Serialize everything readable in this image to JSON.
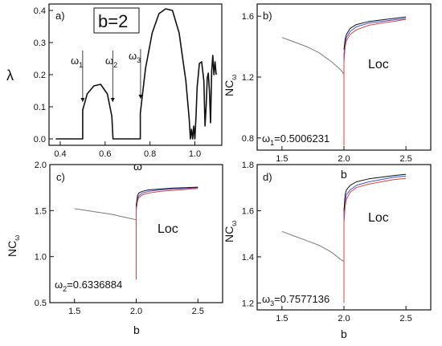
{
  "figure": {
    "panels": [
      {
        "label": "a)",
        "box_label": "b=2",
        "ylabel": "λ",
        "xlabel": "ω"
      },
      {
        "label": "b)",
        "ylabel": "NC",
        "ylabel_sub": "ω",
        "xlabel": "b",
        "region_label": "Loc",
        "omega_label": "ω",
        "omega_sub": "1",
        "omega_value": "=0.5006231"
      },
      {
        "label": "c)",
        "ylabel": "NC",
        "ylabel_sub": "ω",
        "xlabel": "b",
        "region_label": "Loc",
        "omega_label": "ω",
        "omega_sub": "2",
        "omega_value": "=0.6336884"
      },
      {
        "label": "d)",
        "ylabel": "NC",
        "ylabel_sub": "ω",
        "xlabel": "b",
        "region_label": "Loc",
        "omega_label": "ω",
        "omega_sub": "3",
        "omega_value": "=0.7577136"
      }
    ],
    "annotations_a": [
      {
        "sym": "ω",
        "sub": "1"
      },
      {
        "sym": "ω",
        "sub": "2"
      },
      {
        "sym": "ω",
        "sub": "3"
      }
    ],
    "colors": {
      "black": "#111111",
      "gray": "#7a7a7a",
      "blue": "#3355dd",
      "red": "#e04040",
      "magenta": "#cc55cc"
    }
  },
  "chart_data": [
    {
      "type": "line",
      "panel": "a",
      "xlim": [
        0.35,
        1.12
      ],
      "ylim": [
        -0.02,
        0.42
      ],
      "xticks": [
        0.4,
        0.6,
        0.8,
        1.0
      ],
      "xtick_labels": [
        "0.4",
        "0.6",
        "0.8",
        "1.0"
      ],
      "yticks": [
        0.0,
        0.1,
        0.2,
        0.3,
        0.4
      ],
      "ytick_labels": [
        "0.0",
        "0.1",
        "0.2",
        "0.3",
        "0.4"
      ],
      "series": [
        {
          "x": [
            0.38,
            0.5,
            0.5,
            0.52,
            0.55,
            0.58,
            0.61,
            0.63,
            0.635,
            0.64,
            0.65,
            0.68,
            0.72,
            0.75,
            0.757,
            0.757,
            0.78,
            0.81,
            0.84,
            0.87,
            0.9,
            0.93,
            0.96,
            0.975,
            0.98,
            0.985,
            0.99,
            0.995,
            1.0,
            1.005,
            1.01,
            1.02,
            1.03,
            1.04,
            1.045,
            1.05,
            1.055,
            1.06,
            1.065,
            1.07,
            1.075,
            1.08,
            1.085,
            1.09,
            1.095
          ],
          "y": [
            0.0,
            0.0,
            0.09,
            0.14,
            0.165,
            0.17,
            0.14,
            0.07,
            0.0,
            0.0,
            0.0,
            0.0,
            0.0,
            0.0,
            0.0,
            0.08,
            0.22,
            0.33,
            0.39,
            0.405,
            0.4,
            0.33,
            0.18,
            0.06,
            0.0,
            0.03,
            0.0,
            0.04,
            0.0,
            0.07,
            0.16,
            0.235,
            0.24,
            0.18,
            0.04,
            0.1,
            0.19,
            0.205,
            0.15,
            0.05,
            0.21,
            0.26,
            0.2,
            0.24,
            0.2
          ]
        }
      ],
      "annotations": [
        {
          "text": "ω1",
          "x": 0.5,
          "arrow_from_y": 0.275,
          "arrow_to_y": 0.02
        },
        {
          "text": "ω2",
          "x": 0.634,
          "arrow_from_y": 0.275,
          "arrow_to_y": 0.02
        },
        {
          "text": "ω3",
          "x": 0.758,
          "arrow_from_y": 0.28,
          "arrow_to_y": 0.03
        }
      ]
    },
    {
      "type": "line",
      "panel": "b",
      "xlim": [
        1.3,
        2.7
      ],
      "ylim": [
        0.72,
        1.68
      ],
      "xticks": [
        1.5,
        2.0,
        2.5
      ],
      "xtick_labels": [
        "1.5",
        "2.0",
        "2.5"
      ],
      "yticks": [
        0.8,
        1.2,
        1.6
      ],
      "ytick_labels": [
        "0.8",
        "1.2",
        "1.6"
      ],
      "series": [
        {
          "color": "gray",
          "x": [
            1.5,
            1.6,
            1.7,
            1.8,
            1.9,
            1.97,
            2.0
          ],
          "y": [
            1.46,
            1.43,
            1.4,
            1.36,
            1.3,
            1.25,
            1.22
          ]
        },
        {
          "color": "blue",
          "x": [
            2.0,
            2.0,
            2.01,
            2.02,
            2.05,
            2.1,
            2.2,
            2.3,
            2.4,
            2.5
          ],
          "y": [
            1.05,
            1.35,
            1.42,
            1.46,
            1.5,
            1.53,
            1.555,
            1.565,
            1.575,
            1.585
          ]
        },
        {
          "color": "red",
          "x": [
            2.0,
            2.0,
            2.01,
            2.02,
            2.05,
            2.1,
            2.2,
            2.3,
            2.4,
            2.5
          ],
          "y": [
            0.75,
            1.3,
            1.4,
            1.44,
            1.48,
            1.51,
            1.54,
            1.555,
            1.565,
            1.58
          ]
        },
        {
          "color": "black",
          "x": [
            2.0,
            2.01,
            2.02,
            2.05,
            2.1,
            2.2,
            2.3,
            2.4,
            2.5
          ],
          "y": [
            1.38,
            1.45,
            1.48,
            1.52,
            1.545,
            1.565,
            1.575,
            1.585,
            1.595
          ]
        }
      ]
    },
    {
      "type": "line",
      "panel": "c",
      "xlim": [
        1.3,
        2.7
      ],
      "ylim": [
        0.5,
        2.0
      ],
      "xticks": [
        1.5,
        2.0,
        2.5
      ],
      "xtick_labels": [
        "1.5",
        "2.0",
        "2.5"
      ],
      "yticks": [
        0.5,
        1.0,
        1.5,
        2.0
      ],
      "ytick_labels": [
        "0.5",
        "1.0",
        "1.5",
        "2.0"
      ],
      "series": [
        {
          "color": "gray",
          "x": [
            1.5,
            1.6,
            1.7,
            1.8,
            1.9,
            1.97,
            2.0
          ],
          "y": [
            1.52,
            1.5,
            1.48,
            1.46,
            1.43,
            1.41,
            1.4
          ]
        },
        {
          "color": "blue",
          "x": [
            2.0,
            2.0,
            2.01,
            2.02,
            2.05,
            2.1,
            2.2,
            2.3,
            2.4,
            2.5
          ],
          "y": [
            0.95,
            1.55,
            1.63,
            1.66,
            1.69,
            1.71,
            1.725,
            1.735,
            1.74,
            1.75
          ]
        },
        {
          "color": "red",
          "x": [
            2.0,
            2.0,
            2.01,
            2.02,
            2.05,
            2.1,
            2.2,
            2.3,
            2.4,
            2.5
          ],
          "y": [
            0.75,
            1.5,
            1.6,
            1.64,
            1.67,
            1.69,
            1.71,
            1.72,
            1.73,
            1.74
          ]
        },
        {
          "color": "black",
          "x": [
            2.0,
            2.01,
            2.02,
            2.05,
            2.1,
            2.2,
            2.3,
            2.4,
            2.5
          ],
          "y": [
            1.55,
            1.66,
            1.69,
            1.71,
            1.725,
            1.735,
            1.745,
            1.75,
            1.755
          ]
        }
      ]
    },
    {
      "type": "line",
      "panel": "d",
      "xlim": [
        1.3,
        2.7
      ],
      "ylim": [
        1.17,
        1.8
      ],
      "xticks": [
        1.5,
        2.0,
        2.5
      ],
      "xtick_labels": [
        "1.5",
        "2.0",
        "2.5"
      ],
      "yticks": [
        1.2,
        1.4,
        1.6,
        1.8
      ],
      "ytick_labels": [
        "1.2",
        "1.4",
        "1.6",
        "1.8"
      ],
      "series": [
        {
          "color": "gray",
          "x": [
            1.5,
            1.6,
            1.7,
            1.8,
            1.9,
            1.97,
            2.0
          ],
          "y": [
            1.51,
            1.49,
            1.47,
            1.45,
            1.42,
            1.39,
            1.38
          ]
        },
        {
          "color": "blue",
          "x": [
            2.0,
            2.0,
            2.01,
            2.02,
            2.05,
            2.1,
            2.2,
            2.3,
            2.4,
            2.5
          ],
          "y": [
            1.3,
            1.6,
            1.64,
            1.67,
            1.69,
            1.71,
            1.725,
            1.735,
            1.745,
            1.75
          ]
        },
        {
          "color": "red",
          "x": [
            2.0,
            2.0,
            2.01,
            2.02,
            2.05,
            2.1,
            2.2,
            2.3,
            2.4,
            2.5
          ],
          "y": [
            1.2,
            1.55,
            1.62,
            1.65,
            1.68,
            1.7,
            1.715,
            1.725,
            1.735,
            1.74
          ]
        },
        {
          "color": "black",
          "x": [
            2.0,
            2.01,
            2.02,
            2.05,
            2.1,
            2.2,
            2.3,
            2.4,
            2.5
          ],
          "y": [
            1.6,
            1.67,
            1.69,
            1.71,
            1.725,
            1.738,
            1.745,
            1.752,
            1.758
          ]
        }
      ]
    }
  ]
}
